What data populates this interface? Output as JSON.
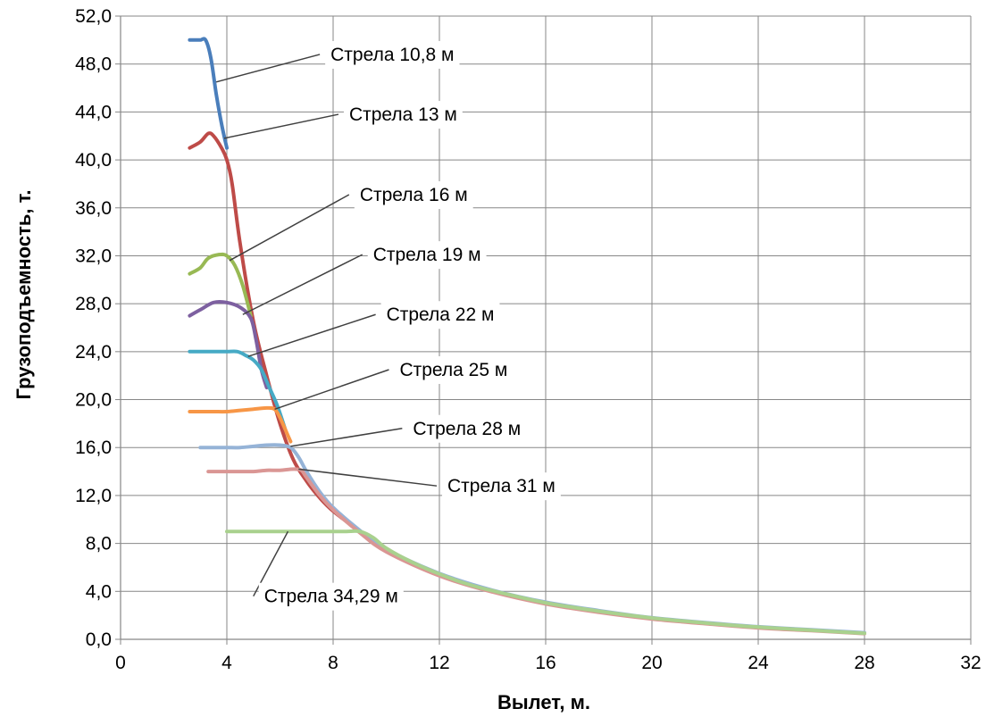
{
  "chart_data": {
    "type": "line",
    "title": "",
    "xlabel": "Вылет, м.",
    "ylabel": "Грузоподъемность, т.",
    "xlim": [
      0,
      32
    ],
    "ylim": [
      0,
      52
    ],
    "x_ticks": [
      0,
      4,
      8,
      12,
      16,
      20,
      24,
      28,
      32
    ],
    "y_ticks": [
      0,
      4,
      8,
      12,
      16,
      20,
      24,
      28,
      32,
      36,
      40,
      44,
      48,
      52
    ],
    "x_tick_labels": [
      "0",
      "4",
      "8",
      "12",
      "16",
      "20",
      "24",
      "28",
      "32"
    ],
    "y_tick_labels": [
      "0,0",
      "4,0",
      "8,0",
      "12,0",
      "16,0",
      "20,0",
      "24,0",
      "28,0",
      "32,0",
      "36,0",
      "40,0",
      "44,0",
      "48,0",
      "52,0"
    ],
    "grid": true,
    "legend": "none",
    "envelope": [
      [
        4.5,
        36
      ],
      [
        5.0,
        27
      ],
      [
        5.5,
        22
      ],
      [
        6.0,
        18
      ],
      [
        6.5,
        15
      ],
      [
        7.0,
        13.2
      ],
      [
        7.5,
        11.8
      ],
      [
        8.0,
        10.7
      ],
      [
        9.0,
        9.0
      ],
      [
        10.0,
        7.4
      ],
      [
        11.0,
        6.3
      ],
      [
        12.0,
        5.4
      ],
      [
        13.0,
        4.6
      ],
      [
        14.0,
        4.0
      ],
      [
        16.0,
        3.0
      ],
      [
        18.0,
        2.3
      ],
      [
        20.0,
        1.75
      ],
      [
        22.0,
        1.35
      ],
      [
        24.0,
        1.0
      ],
      [
        26.0,
        0.75
      ],
      [
        28.0,
        0.5
      ]
    ],
    "series": [
      {
        "name": "Стрела 10,8 м",
        "color": "#4a7ebb",
        "points": [
          [
            2.6,
            50
          ],
          [
            2.8,
            50
          ],
          [
            3.0,
            50
          ],
          [
            3.2,
            50
          ],
          [
            3.4,
            48.5
          ],
          [
            3.6,
            45.5
          ],
          [
            3.8,
            43
          ],
          [
            4.0,
            41
          ]
        ]
      },
      {
        "name": "Стрела 13 м",
        "color": "#be4b48",
        "points": [
          [
            2.6,
            41
          ],
          [
            3.0,
            41.5
          ],
          [
            3.3,
            42.2
          ],
          [
            3.5,
            42
          ],
          [
            3.8,
            41
          ],
          [
            4.0,
            40
          ],
          [
            4.2,
            38
          ],
          [
            4.5,
            33
          ],
          [
            5.0,
            26.5
          ],
          [
            5.5,
            22
          ],
          [
            6.0,
            18
          ],
          [
            6.5,
            15
          ],
          [
            7.0,
            13.2
          ],
          [
            7.5,
            11.8
          ],
          [
            8.0,
            10.7
          ],
          [
            9.0,
            9.0
          ],
          [
            10.0,
            7.4
          ],
          [
            11.0,
            6.3
          ],
          [
            12.0,
            5.4
          ]
        ]
      },
      {
        "name": "Стрела 16 м",
        "color": "#98b954",
        "points": [
          [
            2.6,
            30.5
          ],
          [
            3.0,
            31
          ],
          [
            3.3,
            31.8
          ],
          [
            3.7,
            32.1
          ],
          [
            4.0,
            32
          ],
          [
            4.3,
            31.2
          ],
          [
            4.6,
            29.5
          ],
          [
            4.9,
            27
          ]
        ]
      },
      {
        "name": "Стрела 19 м",
        "color": "#7d60a0",
        "points": [
          [
            2.6,
            27
          ],
          [
            3.0,
            27.5
          ],
          [
            3.5,
            28.1
          ],
          [
            4.0,
            28.1
          ],
          [
            4.5,
            27.7
          ],
          [
            4.9,
            26.8
          ],
          [
            5.1,
            25
          ],
          [
            5.3,
            22.5
          ],
          [
            5.5,
            21
          ]
        ]
      },
      {
        "name": "Стрела 22 м",
        "color": "#46aac5",
        "points": [
          [
            2.6,
            24
          ],
          [
            3.0,
            24
          ],
          [
            3.5,
            24
          ],
          [
            4.0,
            24
          ],
          [
            4.4,
            24
          ],
          [
            4.7,
            23.7
          ],
          [
            5.0,
            23.3
          ],
          [
            5.3,
            22.5
          ],
          [
            5.6,
            21
          ],
          [
            5.9,
            19.5
          ],
          [
            6.2,
            17.5
          ]
        ]
      },
      {
        "name": "Стрела 25 м",
        "color": "#f79646",
        "points": [
          [
            2.6,
            19
          ],
          [
            3.0,
            19
          ],
          [
            3.5,
            19
          ],
          [
            4.0,
            19
          ],
          [
            4.5,
            19.1
          ],
          [
            5.0,
            19.2
          ],
          [
            5.5,
            19.3
          ],
          [
            5.8,
            19.2
          ],
          [
            6.0,
            18.5
          ],
          [
            6.2,
            17.5
          ],
          [
            6.4,
            16.5
          ]
        ]
      },
      {
        "name": "Стрела 28 м",
        "color": "#95b3d7",
        "points": [
          [
            3.0,
            16
          ],
          [
            3.5,
            16
          ],
          [
            4.0,
            16
          ],
          [
            4.5,
            16
          ],
          [
            5.0,
            16.1
          ],
          [
            5.5,
            16.2
          ],
          [
            6.0,
            16.2
          ],
          [
            6.4,
            16.0
          ],
          [
            6.7,
            15.2
          ],
          [
            7.0,
            14.0
          ],
          [
            7.5,
            12.3
          ],
          [
            8.0,
            11.0
          ],
          [
            9.0,
            9.1
          ],
          [
            10.0,
            7.5
          ],
          [
            12.0,
            5.5
          ],
          [
            14.0,
            4.1
          ],
          [
            16.0,
            3.1
          ],
          [
            18.0,
            2.4
          ],
          [
            20.0,
            1.8
          ],
          [
            22.0,
            1.4
          ],
          [
            24.0,
            1.05
          ],
          [
            26.0,
            0.8
          ],
          [
            28.0,
            0.55
          ]
        ]
      },
      {
        "name": "Стрела 31 м",
        "color": "#da9694",
        "points": [
          [
            3.3,
            14
          ],
          [
            4.0,
            14
          ],
          [
            4.5,
            14
          ],
          [
            5.0,
            14
          ],
          [
            5.5,
            14.1
          ],
          [
            6.0,
            14.1
          ],
          [
            6.5,
            14.2
          ],
          [
            6.8,
            14.1
          ],
          [
            7.0,
            13.5
          ],
          [
            7.5,
            12.0
          ],
          [
            8.0,
            10.8
          ],
          [
            9.0,
            8.9
          ],
          [
            10.0,
            7.3
          ],
          [
            12.0,
            5.3
          ],
          [
            14.0,
            3.95
          ],
          [
            16.0,
            2.95
          ],
          [
            18.0,
            2.25
          ],
          [
            20.0,
            1.7
          ],
          [
            22.0,
            1.3
          ],
          [
            24.0,
            0.95
          ],
          [
            26.0,
            0.72
          ],
          [
            28.0,
            0.48
          ]
        ]
      },
      {
        "name": "Стрела 34,29 м",
        "color": "#a9d18e",
        "points": [
          [
            4.0,
            9
          ],
          [
            5.0,
            9
          ],
          [
            6.0,
            9
          ],
          [
            7.0,
            9
          ],
          [
            8.0,
            9
          ],
          [
            8.5,
            9
          ],
          [
            9.0,
            9
          ],
          [
            9.5,
            8.5
          ],
          [
            10.0,
            7.6
          ],
          [
            11.0,
            6.4
          ],
          [
            12.0,
            5.45
          ],
          [
            13.0,
            4.65
          ],
          [
            14.0,
            4.05
          ],
          [
            16.0,
            3.05
          ],
          [
            18.0,
            2.35
          ],
          [
            20.0,
            1.78
          ],
          [
            22.0,
            1.36
          ],
          [
            24.0,
            1.02
          ],
          [
            26.0,
            0.76
          ],
          [
            28.0,
            0.5
          ]
        ]
      }
    ],
    "annotations": [
      {
        "text": "Стрела 10,8 м",
        "target": [
          3.6,
          46.5
        ],
        "anchor": [
          7.5,
          48.8
        ]
      },
      {
        "text": "Стрела 13 м",
        "target": [
          3.9,
          41.8
        ],
        "anchor": [
          8.2,
          43.8
        ]
      },
      {
        "text": "Стрела 16 м",
        "target": [
          4.1,
          31.6
        ],
        "anchor": [
          8.6,
          37.1
        ]
      },
      {
        "text": "Стрела 19 м",
        "target": [
          4.6,
          27.1
        ],
        "anchor": [
          9.1,
          32.1
        ]
      },
      {
        "text": "Стрела 22 м",
        "target": [
          4.8,
          23.6
        ],
        "anchor": [
          9.6,
          27.1
        ]
      },
      {
        "text": "Стрела 25 м",
        "target": [
          5.8,
          19.2
        ],
        "anchor": [
          10.1,
          22.5
        ]
      },
      {
        "text": "Стрела 28 м",
        "target": [
          6.4,
          16.1
        ],
        "anchor": [
          10.6,
          17.6
        ]
      },
      {
        "text": "Стрела 31 м",
        "target": [
          6.7,
          14.2
        ],
        "anchor": [
          11.9,
          12.8
        ]
      },
      {
        "text": "Стрела 34,29 м",
        "target": [
          6.3,
          9.0
        ],
        "anchor": [
          5.0,
          3.6
        ]
      }
    ]
  }
}
